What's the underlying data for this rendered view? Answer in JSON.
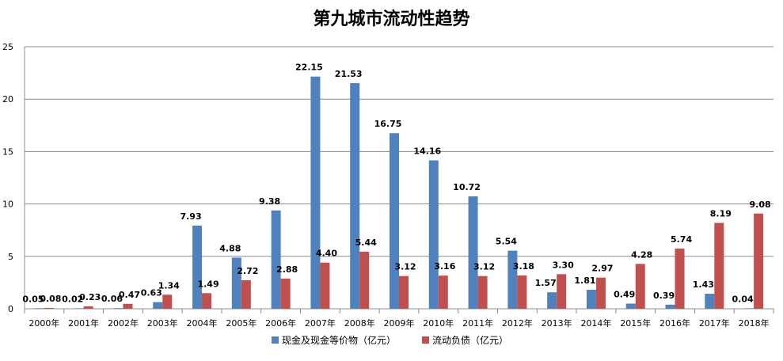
{
  "chart_data": {
    "type": "bar",
    "title": "第九城市流动性趋势",
    "categories": [
      "2000年",
      "2001年",
      "2002年",
      "2003年",
      "2004年",
      "2005年",
      "2006年",
      "2007年",
      "2008年",
      "2009年",
      "2010年",
      "2011年",
      "2012年",
      "2013年",
      "2014年",
      "2015年",
      "2016年",
      "2017年",
      "2018年"
    ],
    "series": [
      {
        "name": "现金及现金等价物（亿元）",
        "color": "#4F81BD",
        "values": [
          0.05,
          0.02,
          0.06,
          0.63,
          7.93,
          4.88,
          9.38,
          22.15,
          21.53,
          16.75,
          14.16,
          10.72,
          5.54,
          1.57,
          1.81,
          0.49,
          0.39,
          1.43,
          0.04
        ],
        "labels": [
          "0.05",
          "0.02",
          "0.06",
          "0.63",
          "7.93",
          "4.88",
          "9.38",
          "22.15",
          "21.53",
          "16.75",
          "14.16",
          "10.72",
          "5.54",
          "1.57",
          "1.81",
          "0.49",
          "0.39",
          "1.43",
          "0.04"
        ]
      },
      {
        "name": "流动负债（亿元）",
        "color": "#C0504D",
        "values": [
          0.08,
          0.23,
          0.47,
          1.34,
          1.49,
          2.72,
          2.88,
          4.4,
          5.44,
          3.12,
          3.16,
          3.12,
          3.18,
          3.3,
          2.97,
          4.28,
          5.74,
          8.19,
          9.08
        ],
        "labels": [
          "0.08",
          "0.23",
          "0.47",
          "1.34",
          "1.49",
          "2.72",
          "2.88",
          "4.40",
          "5.44",
          "3.12",
          "3.16",
          "3.12",
          "3.18",
          "3.30",
          "2.97",
          "4.28",
          "5.74",
          "8.19",
          "9.08"
        ]
      }
    ],
    "xlabel": "",
    "ylabel": "",
    "ylim": [
      0,
      25
    ],
    "yticks": [
      "0",
      "5",
      "10",
      "15",
      "20",
      "25"
    ],
    "grid": true,
    "legend_position": "bottom"
  }
}
